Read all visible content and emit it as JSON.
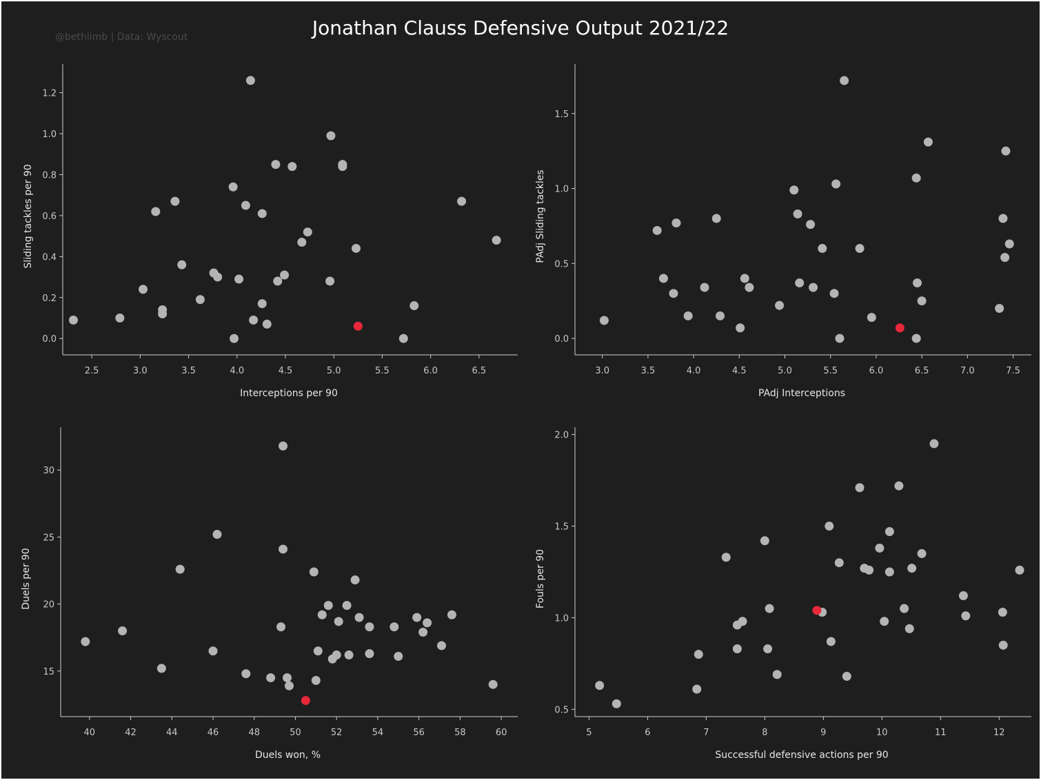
{
  "title": "Jonathan Clauss Defensive Output 2021/22",
  "credit": "@bethlimb | Data: Wyscout",
  "colors": {
    "background": "#1e1e1e",
    "point": "#b4b4b4",
    "highlight": "#e8283a",
    "text": "#ffffff"
  },
  "chart_data": [
    {
      "type": "scatter",
      "xlabel": "Interceptions per 90",
      "ylabel": "Sliding tackles per 90",
      "xlim": [
        2.2,
        6.9
      ],
      "ylim": [
        -0.08,
        1.34
      ],
      "xticks": [
        "2.5",
        "3.0",
        "3.5",
        "4.0",
        "4.5",
        "5.0",
        "5.5",
        "6.0",
        "6.5"
      ],
      "yticks": [
        "0.0",
        "0.2",
        "0.4",
        "0.6",
        "0.8",
        "1.0",
        "1.2"
      ],
      "points": [
        [
          2.31,
          0.09
        ],
        [
          2.79,
          0.1
        ],
        [
          3.03,
          0.24
        ],
        [
          3.16,
          0.62
        ],
        [
          3.23,
          0.14
        ],
        [
          3.23,
          0.12
        ],
        [
          3.36,
          0.67
        ],
        [
          3.43,
          0.36
        ],
        [
          3.62,
          0.19
        ],
        [
          3.76,
          0.32
        ],
        [
          3.8,
          0.3
        ],
        [
          3.96,
          0.74
        ],
        [
          3.97,
          0.0
        ],
        [
          4.02,
          0.29
        ],
        [
          4.09,
          0.65
        ],
        [
          4.14,
          1.26
        ],
        [
          4.17,
          0.09
        ],
        [
          4.26,
          0.61
        ],
        [
          4.26,
          0.17
        ],
        [
          4.31,
          0.07
        ],
        [
          4.4,
          0.85
        ],
        [
          4.42,
          0.28
        ],
        [
          4.49,
          0.31
        ],
        [
          4.57,
          0.84
        ],
        [
          4.67,
          0.47
        ],
        [
          4.73,
          0.52
        ],
        [
          4.96,
          0.28
        ],
        [
          4.97,
          0.99
        ],
        [
          5.09,
          0.85
        ],
        [
          5.09,
          0.84
        ],
        [
          5.23,
          0.44
        ],
        [
          5.72,
          0.0
        ],
        [
          5.83,
          0.16
        ],
        [
          6.32,
          0.67
        ],
        [
          6.68,
          0.48
        ]
      ],
      "highlight": [
        5.25,
        0.06
      ]
    },
    {
      "type": "scatter",
      "xlabel": "PAdj Interceptions",
      "ylabel": "PAdj Sliding tackles",
      "xlim": [
        2.7,
        7.7
      ],
      "ylim": [
        -0.11,
        1.83
      ],
      "xticks": [
        "3.0",
        "3.5",
        "4.0",
        "4.5",
        "5.0",
        "5.5",
        "6.0",
        "6.5",
        "7.0",
        "7.5"
      ],
      "yticks": [
        "0.0",
        "0.5",
        "1.0",
        "1.5"
      ],
      "points": [
        [
          3.02,
          0.12
        ],
        [
          3.6,
          0.72
        ],
        [
          3.67,
          0.4
        ],
        [
          3.78,
          0.3
        ],
        [
          3.81,
          0.77
        ],
        [
          3.94,
          0.15
        ],
        [
          4.12,
          0.34
        ],
        [
          4.25,
          0.8
        ],
        [
          4.29,
          0.15
        ],
        [
          4.51,
          0.07
        ],
        [
          4.56,
          0.4
        ],
        [
          4.61,
          0.34
        ],
        [
          4.94,
          0.22
        ],
        [
          5.1,
          0.99
        ],
        [
          5.14,
          0.83
        ],
        [
          5.16,
          0.37
        ],
        [
          5.28,
          0.76
        ],
        [
          5.31,
          0.34
        ],
        [
          5.41,
          0.6
        ],
        [
          5.54,
          0.3
        ],
        [
          5.56,
          1.03
        ],
        [
          5.6,
          0.0
        ],
        [
          5.65,
          1.72
        ],
        [
          5.82,
          0.6
        ],
        [
          5.95,
          0.14
        ],
        [
          6.44,
          1.07
        ],
        [
          6.45,
          0.37
        ],
        [
          6.44,
          0.0
        ],
        [
          6.5,
          0.25
        ],
        [
          6.57,
          1.31
        ],
        [
          7.35,
          0.2
        ],
        [
          7.39,
          0.8
        ],
        [
          7.41,
          0.54
        ],
        [
          7.42,
          1.25
        ],
        [
          7.46,
          0.63
        ]
      ],
      "highlight": [
        6.26,
        0.07
      ]
    },
    {
      "type": "scatter",
      "xlabel": "Duels won, %",
      "ylabel": "Duels per 90",
      "xlim": [
        38.6,
        60.8
      ],
      "ylim": [
        11.6,
        33.2
      ],
      "xticks": [
        "40",
        "42",
        "44",
        "46",
        "48",
        "50",
        "52",
        "54",
        "56",
        "58",
        "60"
      ],
      "yticks": [
        "15",
        "20",
        "25",
        "30"
      ],
      "points": [
        [
          39.8,
          17.2
        ],
        [
          41.6,
          18.0
        ],
        [
          43.5,
          15.2
        ],
        [
          44.4,
          22.6
        ],
        [
          46.0,
          16.5
        ],
        [
          46.2,
          25.2
        ],
        [
          47.6,
          14.8
        ],
        [
          48.8,
          14.5
        ],
        [
          49.3,
          18.3
        ],
        [
          49.4,
          24.1
        ],
        [
          49.4,
          31.8
        ],
        [
          49.6,
          14.5
        ],
        [
          49.7,
          13.9
        ],
        [
          50.9,
          22.4
        ],
        [
          51.0,
          14.3
        ],
        [
          51.1,
          16.5
        ],
        [
          51.3,
          19.2
        ],
        [
          51.6,
          19.9
        ],
        [
          51.8,
          15.9
        ],
        [
          52.0,
          16.2
        ],
        [
          52.1,
          18.7
        ],
        [
          52.5,
          19.9
        ],
        [
          52.6,
          16.2
        ],
        [
          52.9,
          21.8
        ],
        [
          53.1,
          19.0
        ],
        [
          53.6,
          18.3
        ],
        [
          53.6,
          16.3
        ],
        [
          54.8,
          18.3
        ],
        [
          55.0,
          16.1
        ],
        [
          55.9,
          19.0
        ],
        [
          56.2,
          17.9
        ],
        [
          56.4,
          18.6
        ],
        [
          57.1,
          16.9
        ],
        [
          57.6,
          19.2
        ],
        [
          59.6,
          14.0
        ]
      ],
      "highlight": [
        50.5,
        12.8
      ]
    },
    {
      "type": "scatter",
      "xlabel": "Successful defensive actions per 90",
      "ylabel": "Fouls per 90",
      "xlim": [
        4.76,
        12.55
      ],
      "ylim": [
        0.46,
        2.04
      ],
      "xticks": [
        "5",
        "6",
        "7",
        "8",
        "9",
        "10",
        "11",
        "12"
      ],
      "yticks": [
        "0.5",
        "1.0",
        "1.5",
        "2.0"
      ],
      "points": [
        [
          5.18,
          0.63
        ],
        [
          5.47,
          0.53
        ],
        [
          6.84,
          0.61
        ],
        [
          6.87,
          0.8
        ],
        [
          7.34,
          1.33
        ],
        [
          7.53,
          0.83
        ],
        [
          7.53,
          0.96
        ],
        [
          7.62,
          0.98
        ],
        [
          8.0,
          1.42
        ],
        [
          8.05,
          0.83
        ],
        [
          8.08,
          1.05
        ],
        [
          8.21,
          0.69
        ],
        [
          8.98,
          1.03
        ],
        [
          9.1,
          1.5
        ],
        [
          9.13,
          0.87
        ],
        [
          9.27,
          1.3
        ],
        [
          9.4,
          0.68
        ],
        [
          9.62,
          1.71
        ],
        [
          9.7,
          1.27
        ],
        [
          9.78,
          1.26
        ],
        [
          9.96,
          1.38
        ],
        [
          10.04,
          0.98
        ],
        [
          10.13,
          1.47
        ],
        [
          10.13,
          1.25
        ],
        [
          10.29,
          1.72
        ],
        [
          10.38,
          1.05
        ],
        [
          10.47,
          0.94
        ],
        [
          10.51,
          1.27
        ],
        [
          10.68,
          1.35
        ],
        [
          10.89,
          1.95
        ],
        [
          11.39,
          1.12
        ],
        [
          11.43,
          1.01
        ],
        [
          12.06,
          1.03
        ],
        [
          12.07,
          0.85
        ],
        [
          12.35,
          1.26
        ]
      ],
      "highlight": [
        8.89,
        1.04
      ]
    }
  ]
}
